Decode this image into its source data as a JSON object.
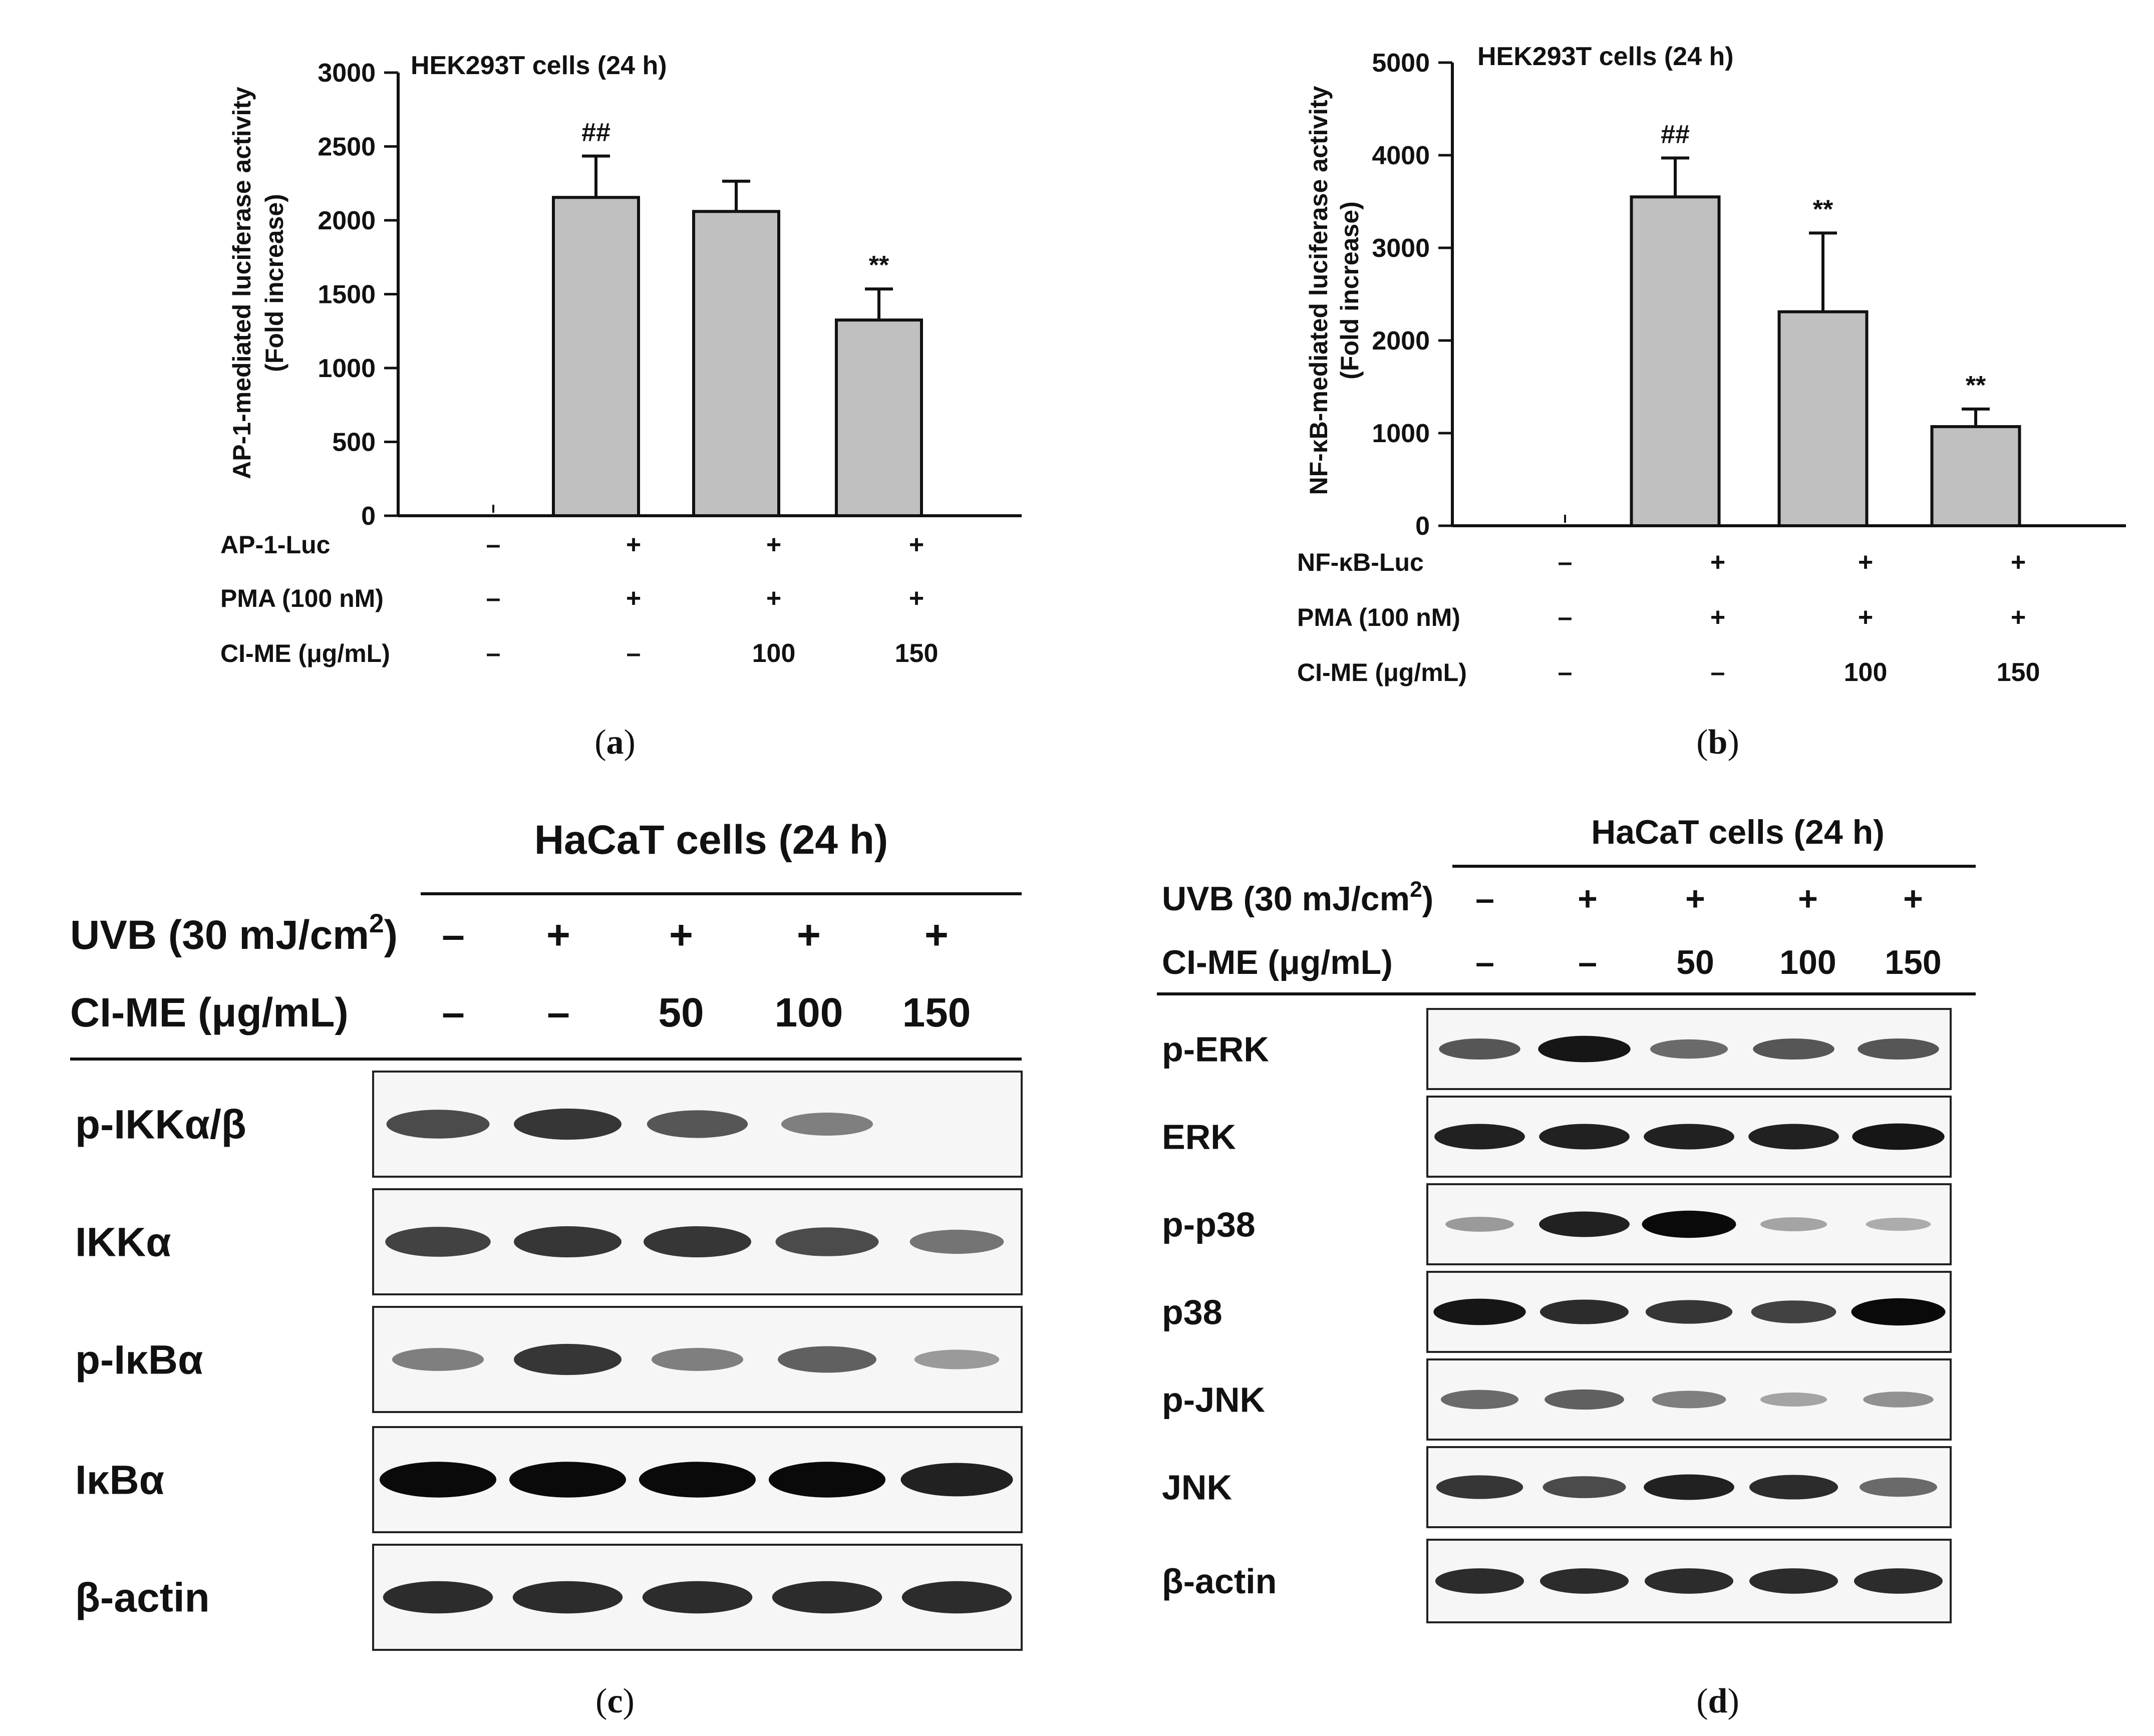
{
  "chart_data": [
    {
      "panel": "a",
      "type": "bar",
      "title": "HEK293T cells (24 h)",
      "ylabel": "AP-1-mediated luciferase activity",
      "ylabel2": "(Fold increase)",
      "ylim": [
        0,
        3000
      ],
      "yticks": [
        0,
        500,
        1000,
        1500,
        2000,
        2500,
        3000
      ],
      "values": [
        0,
        2155,
        2060,
        1325
      ],
      "errors": [
        0,
        280,
        205,
        210
      ],
      "marks": [
        "",
        "##",
        "",
        "**"
      ],
      "conditions": [
        {
          "label": "AP-1-Luc",
          "values": [
            "–",
            "+",
            "+",
            "+"
          ]
        },
        {
          "label": "PMA (100 nM)",
          "values": [
            "–",
            "+",
            "+",
            "+"
          ]
        },
        {
          "label": "CI-ME (μg/mL)",
          "values": [
            "–",
            "–",
            "100",
            "150"
          ]
        }
      ],
      "bar_color": "#c0c0c0",
      "caption": "a"
    },
    {
      "panel": "b",
      "type": "bar",
      "title": "HEK293T cells (24 h)",
      "ylabel": "NF-κB-mediated luciferase activity",
      "ylabel2": "(Fold increase)",
      "ylim": [
        0,
        5000
      ],
      "yticks": [
        0,
        1000,
        2000,
        3000,
        4000,
        5000
      ],
      "values": [
        0,
        3550,
        2310,
        1070
      ],
      "errors": [
        0,
        420,
        850,
        190
      ],
      "marks": [
        "",
        "##",
        "**",
        "**"
      ],
      "conditions": [
        {
          "label": "NF-κB-Luc",
          "values": [
            "–",
            "+",
            "+",
            "+"
          ]
        },
        {
          "label": "PMA (100 nM)",
          "values": [
            "–",
            "+",
            "+",
            "+"
          ]
        },
        {
          "label": "CI-ME (μg/mL)",
          "values": [
            "–",
            "–",
            "100",
            "150"
          ]
        }
      ],
      "bar_color": "#c0c0c0",
      "caption": "b"
    }
  ],
  "blots": [
    {
      "panel": "c",
      "title": "HaCaT cells (24 h)",
      "uvb_label": "UVB (30 mJ/cm",
      "uvb_sup": "2",
      "uvb_close": ")",
      "uvb_values": [
        "–",
        "+",
        "+",
        "+",
        "+"
      ],
      "cime_label": "CI-ME (μg/mL)",
      "cime_values": [
        "–",
        "–",
        "50",
        "100",
        "150"
      ],
      "rows": [
        {
          "label": "p-IKKα/β",
          "intensity": [
            0.7,
            0.8,
            0.65,
            0.45,
            0.0
          ]
        },
        {
          "label": "IKKα",
          "intensity": [
            0.75,
            0.8,
            0.8,
            0.7,
            0.5
          ]
        },
        {
          "label": "p-IκBα",
          "intensity": [
            0.45,
            0.8,
            0.45,
            0.6,
            0.3
          ]
        },
        {
          "label": "IκBα",
          "intensity": [
            1.0,
            1.0,
            1.0,
            1.0,
            0.9
          ]
        },
        {
          "label": "β-actin",
          "intensity": [
            0.85,
            0.85,
            0.85,
            0.85,
            0.85
          ]
        }
      ],
      "caption": "c"
    },
    {
      "panel": "d",
      "title": "HaCaT cells (24 h)",
      "uvb_label": "UVB (30 mJ/cm",
      "uvb_sup": "2",
      "uvb_close": ")",
      "uvb_values": [
        "–",
        "+",
        "+",
        "+",
        "+"
      ],
      "cime_label": "CI-ME (μg/mL)",
      "cime_values": [
        "–",
        "–",
        "50",
        "100",
        "150"
      ],
      "rows": [
        {
          "label": "p-ERK",
          "intensity": [
            0.65,
            0.95,
            0.55,
            0.65,
            0.65
          ]
        },
        {
          "label": "ERK",
          "intensity": [
            0.9,
            0.9,
            0.9,
            0.9,
            0.95
          ]
        },
        {
          "label": "p-p38",
          "intensity": [
            0.3,
            0.9,
            1.0,
            0.25,
            0.2
          ]
        },
        {
          "label": "p38",
          "intensity": [
            0.95,
            0.85,
            0.8,
            0.75,
            1.0
          ]
        },
        {
          "label": "p-JNK",
          "intensity": [
            0.55,
            0.6,
            0.45,
            0.25,
            0.35
          ]
        },
        {
          "label": "JNK",
          "intensity": [
            0.8,
            0.7,
            0.9,
            0.85,
            0.55
          ]
        },
        {
          "label": "β-actin",
          "intensity": [
            0.85,
            0.85,
            0.85,
            0.85,
            0.85
          ]
        }
      ],
      "caption": "d"
    }
  ]
}
